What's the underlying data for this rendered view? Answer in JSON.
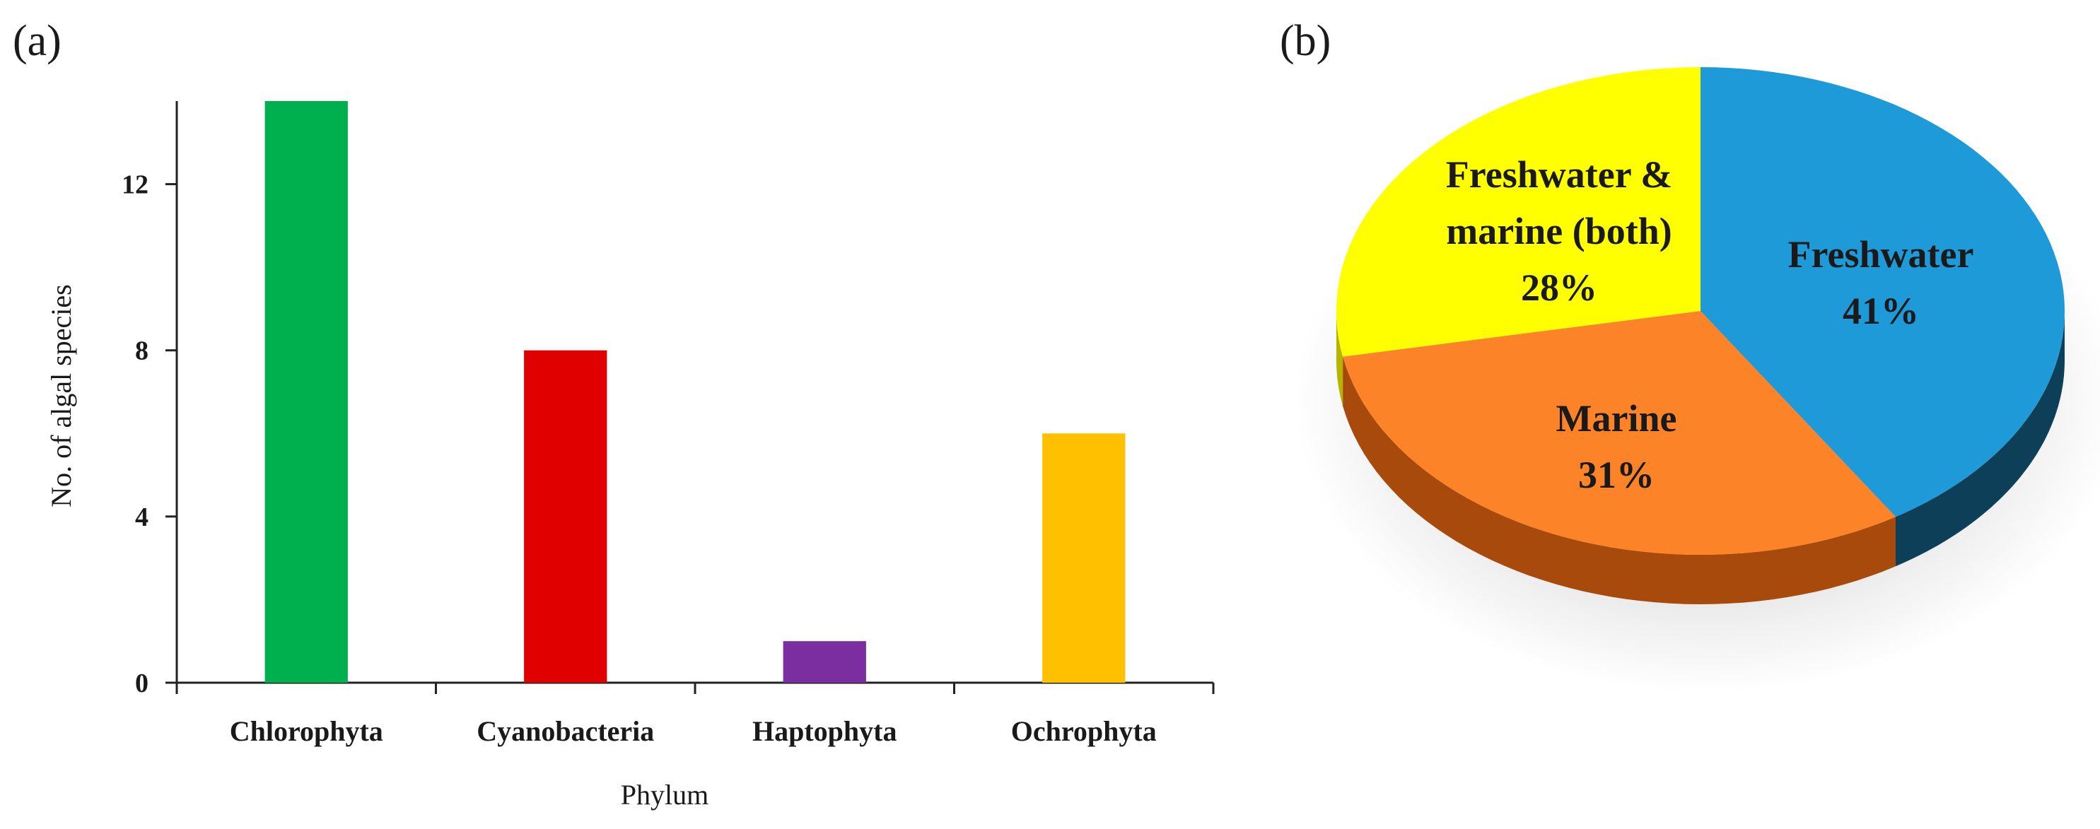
{
  "panels": {
    "a": "(a)",
    "b": "(b)"
  },
  "chart_data": [
    {
      "type": "bar",
      "xlabel": "Phylum",
      "ylabel": "No. of algal species",
      "categories": [
        "Chlorophyta",
        "Cyanobacteria",
        "Haptophyta",
        "Ochrophyta"
      ],
      "values": [
        14,
        8,
        1,
        6
      ],
      "colors": [
        "#00b04f",
        "#e00000",
        "#7b2ea0",
        "#ffc000"
      ],
      "yticks": [
        "0",
        "4",
        "8",
        "12"
      ],
      "ylim": [
        0,
        14
      ],
      "grid": false,
      "legend": "none"
    },
    {
      "type": "pie",
      "slices": [
        {
          "label": "Freshwater",
          "value": 41,
          "value_label": "41%",
          "color": "#1f9ad8",
          "side_color": "#0d3f58"
        },
        {
          "label": "Marine",
          "value": 31,
          "value_label": "31%",
          "color": "#fd8328",
          "side_color": "#a84a0c"
        },
        {
          "label_lines": [
            "Freshwater &",
            "marine (both)"
          ],
          "value": 28,
          "value_label": "28%",
          "color": "#ffff00",
          "side_color": "#b5b500"
        }
      ],
      "style": "3d",
      "legend": "none"
    }
  ]
}
